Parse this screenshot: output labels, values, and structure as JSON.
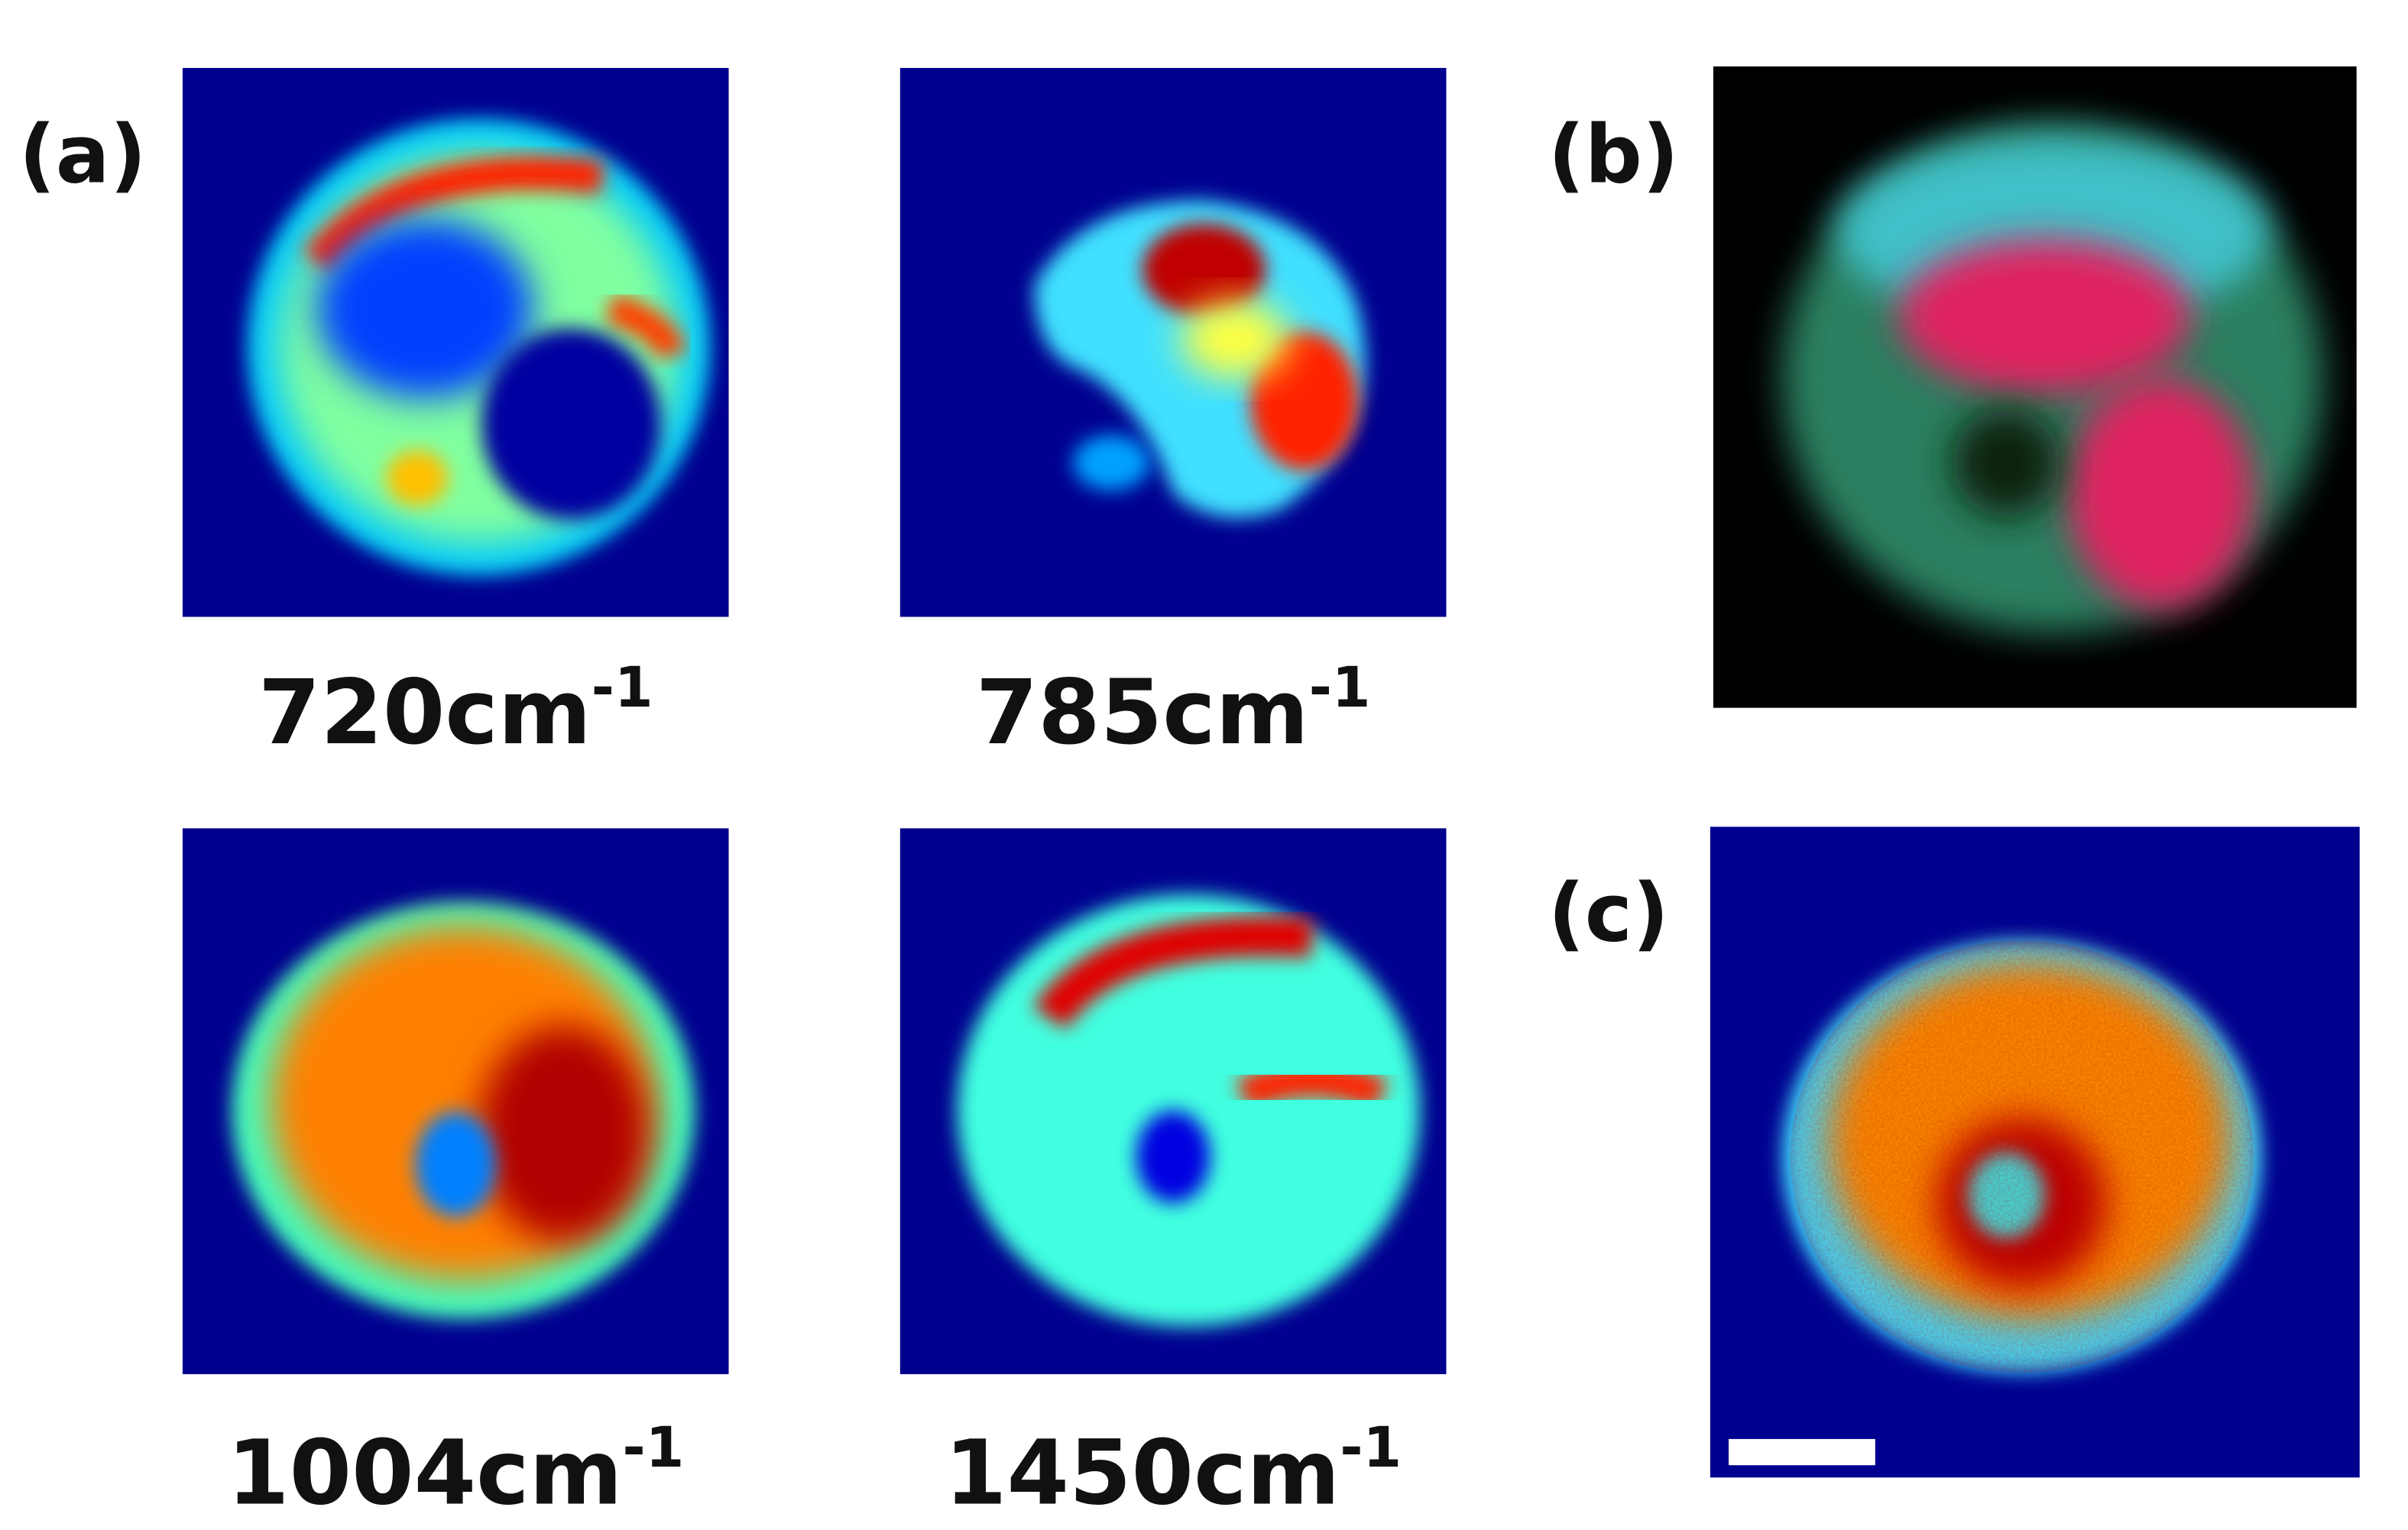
{
  "panel_labels": [
    "(a)",
    "(b)",
    "(c)"
  ],
  "maps": [
    {
      "label": "720cm",
      "superscript": "-1"
    },
    {
      "label": "785cm",
      "superscript": "-1"
    },
    {
      "label": "1004cm",
      "superscript": "-1"
    },
    {
      "label": "1450cm",
      "superscript": "-1"
    }
  ]
}
